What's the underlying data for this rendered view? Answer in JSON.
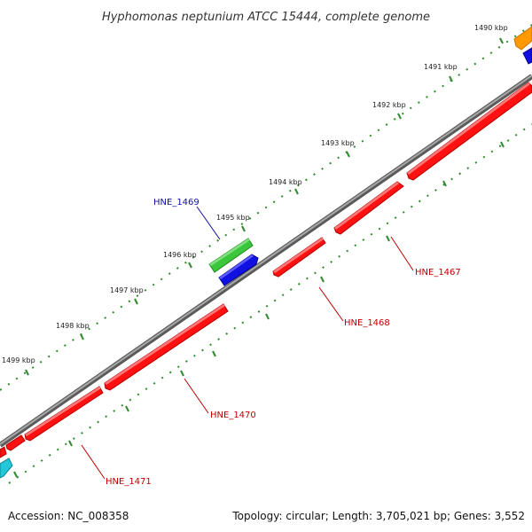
{
  "title": "Hyphomonas neptunium ATCC 15444, complete genome",
  "footer": {
    "accession": "Accession: NC_008358",
    "topology": "Topology: circular; Length: 3,705,021 bp; Genes: 3,552"
  },
  "colors": {
    "backbone": "#7a7a7a",
    "ticks": "#2e8b2e",
    "forward_label": "#1010a0",
    "reverse_label": "#c00000",
    "gene_red": "#ff1111",
    "gene_green": "#3cc63c",
    "gene_blue": "#1010e0",
    "gene_orange": "#ff9900",
    "gene_cyan": "#22c8d8"
  },
  "kbp_marks": [
    {
      "label": "1490 kbp"
    },
    {
      "label": "1491 kbp"
    },
    {
      "label": "1492 kbp"
    },
    {
      "label": "1493 kbp"
    },
    {
      "label": "1494 kbp"
    },
    {
      "label": "1495 kbp"
    },
    {
      "label": "1496 kbp"
    },
    {
      "label": "1497 kbp"
    },
    {
      "label": "1498 kbp"
    },
    {
      "label": "1499 kbp"
    }
  ],
  "gene_labels": [
    {
      "name": "HNE_1469",
      "strand": "forward"
    },
    {
      "name": "HNE_1467",
      "strand": "reverse"
    },
    {
      "name": "HNE_1468",
      "strand": "reverse"
    },
    {
      "name": "HNE_1470",
      "strand": "reverse"
    },
    {
      "name": "HNE_1471",
      "strand": "reverse"
    }
  ]
}
